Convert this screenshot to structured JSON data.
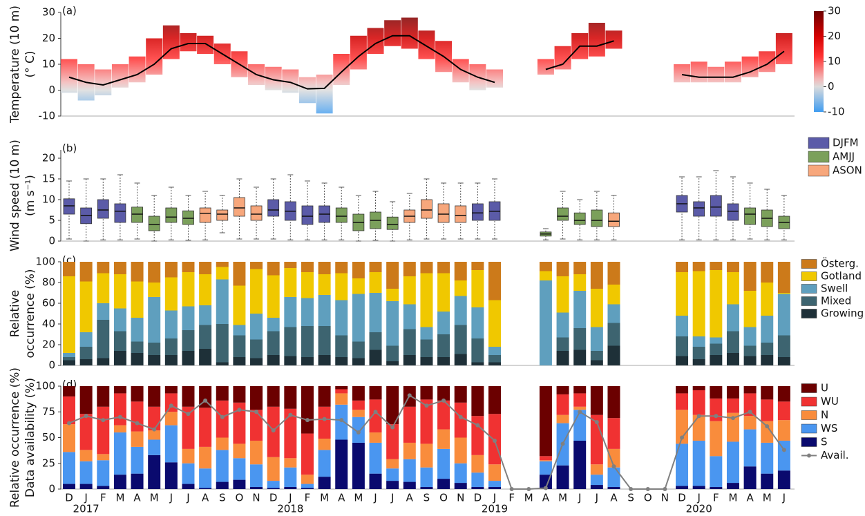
{
  "chart_data": [
    {
      "type": "line",
      "label": "(a)",
      "ylabel": [
        "Temperature (10 m)",
        "(° C)"
      ],
      "ylim": [
        -10,
        30
      ],
      "yticks": [
        -10,
        0,
        10,
        20,
        30
      ],
      "line_color": "#000000",
      "values": [
        5,
        3,
        2,
        4,
        6,
        10,
        16,
        18,
        18,
        14,
        10,
        6,
        4,
        3,
        0.5,
        0.7,
        7,
        13,
        18,
        21,
        21,
        17,
        13,
        8,
        5,
        3,
        null,
        null,
        8,
        10,
        17,
        17,
        19,
        null,
        null,
        null,
        6,
        5,
        5,
        5,
        7,
        10,
        15
      ],
      "max": [
        12,
        10,
        8,
        10,
        13,
        20,
        25,
        22,
        21,
        18,
        15,
        10,
        9,
        8,
        5,
        6,
        14,
        21,
        24,
        27,
        28,
        23,
        19,
        12,
        10,
        8,
        null,
        null,
        12,
        17,
        22,
        26,
        23,
        null,
        null,
        null,
        10,
        11,
        9,
        11,
        13,
        15,
        22
      ],
      "min": [
        -1,
        -4,
        -2,
        1,
        3,
        6,
        12,
        15,
        14,
        10,
        5,
        2,
        0,
        -1,
        -5,
        -9,
        2,
        8,
        14,
        17,
        16,
        12,
        7,
        3,
        0,
        1,
        null,
        null,
        6,
        8,
        12,
        13,
        16,
        null,
        null,
        null,
        3,
        3,
        3,
        3,
        5,
        7,
        10
      ],
      "clim": [
        -10,
        30
      ],
      "cticks": [
        30,
        20,
        10,
        0,
        -10
      ],
      "colorscale": [
        {
          "value": 30,
          "color": "#6e0000"
        },
        {
          "value": 20,
          "color": "#d40000"
        },
        {
          "value": 12,
          "color": "#ff3333"
        },
        {
          "value": 3,
          "color": "#f2b8b8"
        },
        {
          "value": 0,
          "color": "#dcdcdc"
        },
        {
          "value": -10,
          "color": "#3f9cf0"
        }
      ]
    },
    {
      "type": "box",
      "label": "(b)",
      "ylabel": [
        "Wind speed (10 m)",
        "(m s⁻¹)"
      ],
      "ylim": [
        0,
        22
      ],
      "yticks": [
        0,
        5,
        10,
        15,
        20
      ],
      "series": [
        {
          "name": "DJFM",
          "color": "#5b5ba8",
          "values": [
            [
              0.5,
              6.5,
              8.5,
              10.2,
              14.5
            ],
            [
              0,
              4.2,
              6.2,
              8,
              15
            ],
            [
              0.3,
              5.5,
              7.5,
              10,
              15
            ],
            [
              0.3,
              4.5,
              7.2,
              9,
              16
            ],
            null,
            null,
            null,
            null,
            null,
            null,
            null,
            null,
            [
              0.5,
              6,
              7.5,
              10,
              15
            ],
            [
              0.3,
              5,
              7.2,
              9.5,
              16
            ],
            [
              0.3,
              4,
              6,
              8.5,
              14.5
            ],
            [
              0.3,
              4.5,
              6.5,
              8.5,
              14
            ],
            null,
            null,
            null,
            null,
            null,
            null,
            null,
            null,
            [
              0.5,
              5,
              6.8,
              9,
              14
            ],
            [
              0.5,
              5,
              7.2,
              9.5,
              15
            ],
            null,
            null,
            null,
            null,
            null,
            null,
            null,
            null,
            null,
            null,
            [
              0.3,
              7,
              9,
              11,
              15.5
            ],
            [
              0.3,
              6,
              8,
              9.5,
              15.5
            ],
            [
              0.3,
              6,
              8.2,
              11,
              17
            ],
            [
              0.3,
              5,
              7.2,
              9,
              15.5
            ],
            null,
            null,
            null
          ]
        },
        {
          "name": "AMJJ",
          "color": "#7ba05b",
          "values": [
            null,
            null,
            null,
            null,
            [
              0.5,
              4.5,
              6.5,
              8.2,
              14
            ],
            [
              0,
              2.5,
              4,
              6,
              11
            ],
            [
              0.3,
              4.5,
              5.8,
              8,
              13
            ],
            [
              0.2,
              4,
              5.5,
              7.3,
              11
            ],
            null,
            null,
            null,
            null,
            null,
            null,
            null,
            null,
            [
              0.3,
              4.5,
              6,
              8,
              13
            ],
            [
              0,
              2.5,
              4.5,
              6.5,
              11
            ],
            [
              0.2,
              3,
              5,
              7,
              12
            ],
            [
              0,
              2.8,
              4,
              5.8,
              9.5
            ],
            null,
            null,
            null,
            null,
            null,
            null,
            null,
            null,
            [
              0.3,
              1.2,
              1.7,
              2.2,
              3
            ],
            [
              0.5,
              5,
              6,
              8,
              12
            ],
            [
              0.3,
              4,
              5,
              6.8,
              10
            ],
            [
              0.3,
              3.5,
              5,
              7.5,
              12
            ],
            null,
            null,
            null,
            null,
            null,
            null,
            null,
            null,
            [
              0.5,
              4,
              6.5,
              8,
              14
            ],
            [
              0.3,
              3.5,
              5.5,
              7.5,
              12.5
            ],
            [
              0.3,
              3,
              4.5,
              6,
              11
            ]
          ]
        },
        {
          "name": "ASON",
          "color": "#f7a77c",
          "values": [
            null,
            null,
            null,
            null,
            null,
            null,
            null,
            null,
            [
              0.3,
              4.5,
              6.7,
              8,
              12
            ],
            [
              2,
              5,
              6.5,
              7.5,
              11
            ],
            [
              0.5,
              6,
              8,
              10.5,
              15
            ],
            [
              0.5,
              5,
              6.5,
              8.5,
              13
            ],
            null,
            null,
            null,
            null,
            null,
            null,
            null,
            null,
            [
              0.3,
              4.5,
              6,
              7.5,
              11.5
            ],
            [
              0.5,
              5.5,
              7.5,
              10,
              15
            ],
            [
              0.5,
              4.5,
              6.5,
              9,
              14
            ],
            [
              0.5,
              4.5,
              6.2,
              8.5,
              14
            ],
            null,
            null,
            null,
            null,
            null,
            null,
            null,
            null,
            [
              0.3,
              3.5,
              4.8,
              6.8,
              11
            ],
            null,
            null,
            null,
            null,
            null,
            null,
            null,
            null,
            null,
            null
          ]
        }
      ]
    },
    {
      "type": "stacked-bar",
      "label": "(c)",
      "ylabel": [
        "Relative",
        "occurrence (%)"
      ],
      "ylim": [
        0,
        100
      ],
      "yticks": [
        0,
        20,
        40,
        60,
        80,
        100
      ],
      "series": [
        {
          "name": "Österg.",
          "color": "#cc7a1a",
          "values": [
            14,
            19,
            11,
            12,
            19,
            20,
            15,
            10,
            12,
            5,
            23,
            7,
            13,
            6,
            10,
            12,
            11,
            16,
            10,
            26,
            14,
            11,
            11,
            18,
            8,
            37,
            null,
            null,
            9,
            14,
            12,
            26,
            22,
            null,
            null,
            null,
            10,
            9,
            8,
            10,
            28,
            20,
            30
          ]
        },
        {
          "name": "Gotland",
          "color": "#f0c800",
          "values": [
            74,
            49,
            29,
            33,
            35,
            14,
            32,
            33,
            30,
            12,
            38,
            43,
            41,
            28,
            25,
            20,
            26,
            15,
            20,
            12,
            27,
            52,
            37,
            15,
            36,
            45,
            null,
            null,
            9,
            35,
            16,
            37,
            19,
            null,
            null,
            null,
            42,
            63,
            65,
            31,
            35,
            32,
            1
          ]
        },
        {
          "name": "Swell",
          "color": "#5f9fbe",
          "values": [
            4,
            14,
            16,
            22,
            23,
            44,
            27,
            23,
            19,
            43,
            10,
            25,
            13,
            29,
            27,
            30,
            34,
            46,
            38,
            43,
            24,
            12,
            22,
            28,
            30,
            8,
            null,
            null,
            82,
            24,
            36,
            23,
            18,
            null,
            null,
            null,
            20,
            10,
            6,
            26,
            18,
            26,
            40
          ]
        },
        {
          "name": "Mixed",
          "color": "#3d6470",
          "values": [
            3,
            12,
            37,
            19,
            11,
            12,
            16,
            20,
            23,
            37,
            21,
            18,
            23,
            28,
            30,
            28,
            21,
            16,
            17,
            15,
            25,
            17,
            22,
            28,
            23,
            7,
            null,
            null,
            0,
            13,
            21,
            9,
            22,
            null,
            null,
            null,
            19,
            12,
            11,
            21,
            10,
            12,
            21
          ]
        },
        {
          "name": "Growing",
          "color": "#1e3038",
          "values": [
            5,
            6,
            7,
            14,
            12,
            10,
            10,
            14,
            16,
            3,
            8,
            7,
            10,
            9,
            8,
            10,
            8,
            7,
            15,
            4,
            10,
            8,
            8,
            11,
            3,
            3,
            null,
            null,
            0,
            14,
            15,
            5,
            19,
            null,
            null,
            null,
            9,
            6,
            10,
            12,
            9,
            10,
            8
          ]
        }
      ]
    },
    {
      "type": "stacked-bar",
      "label": "(d)",
      "ylabel": [
        "Relative occurrence (%)",
        "Data availability (%)"
      ],
      "ylim": [
        0,
        100
      ],
      "yticks": [
        0,
        25,
        50,
        75,
        100
      ],
      "categories": [
        "D",
        "J",
        "F",
        "M",
        "A",
        "M",
        "J",
        "J",
        "A",
        "S",
        "O",
        "N",
        "D",
        "J",
        "F",
        "M",
        "A",
        "M",
        "J",
        "J",
        "A",
        "S",
        "O",
        "N",
        "D",
        "J",
        "F",
        "M",
        "A",
        "M",
        "J",
        "J",
        "A",
        "S",
        "O",
        "N",
        "D",
        "J",
        "F",
        "M",
        "A",
        "M",
        "J"
      ],
      "year_labels": [
        null,
        "2017",
        null,
        null,
        null,
        null,
        null,
        null,
        null,
        null,
        null,
        null,
        null,
        "2018",
        null,
        null,
        null,
        null,
        null,
        null,
        null,
        null,
        null,
        null,
        null,
        "2019",
        null,
        null,
        null,
        null,
        null,
        null,
        null,
        null,
        null,
        null,
        null,
        "2020",
        null,
        null,
        null,
        null,
        null
      ],
      "series": [
        {
          "name": "U",
          "color": "#6b0000",
          "values": [
            10,
            27,
            20,
            7,
            15,
            20,
            7,
            20,
            21,
            14,
            16,
            23,
            20,
            22,
            46,
            20,
            3,
            14,
            13,
            37,
            20,
            13,
            14,
            16,
            29,
            27,
            null,
            null,
            68,
            8,
            7,
            28,
            31,
            null,
            null,
            null,
            7,
            4,
            12,
            12,
            7,
            13,
            15
          ]
        },
        {
          "name": "WU",
          "color": "#f03232",
          "values": [
            27,
            35,
            46,
            31,
            29,
            23,
            18,
            41,
            38,
            36,
            40,
            30,
            49,
            48,
            40,
            31,
            4,
            9,
            32,
            34,
            35,
            43,
            28,
            34,
            38,
            49,
            null,
            null,
            4,
            20,
            13,
            48,
            30,
            null,
            null,
            null,
            16,
            24,
            22,
            14,
            22,
            21,
            18
          ]
        },
        {
          "name": "N",
          "color": "#f98c3c",
          "values": [
            27,
            11,
            6,
            7,
            15,
            9,
            13,
            14,
            21,
            12,
            14,
            23,
            23,
            9,
            9,
            11,
            11,
            7,
            10,
            9,
            16,
            23,
            19,
            25,
            17,
            16,
            null,
            null,
            1,
            8,
            3,
            10,
            18,
            null,
            null,
            null,
            33,
            25,
            34,
            28,
            13,
            21,
            20
          ]
        },
        {
          "name": "WS",
          "color": "#4a96f0",
          "values": [
            31,
            22,
            25,
            41,
            26,
            15,
            36,
            20,
            19,
            31,
            21,
            22,
            7,
            19,
            4,
            26,
            34,
            25,
            30,
            12,
            22,
            19,
            29,
            19,
            14,
            6,
            null,
            null,
            13,
            41,
            30,
            10,
            19,
            null,
            null,
            null,
            41,
            44,
            30,
            40,
            36,
            30,
            29
          ]
        },
        {
          "name": "S",
          "color": "#0a0a6e",
          "values": [
            5,
            5,
            3,
            14,
            15,
            33,
            26,
            5,
            1,
            7,
            9,
            2,
            1,
            2,
            1,
            12,
            48,
            45,
            15,
            8,
            7,
            2,
            10,
            6,
            2,
            2,
            null,
            null,
            14,
            23,
            47,
            4,
            2,
            null,
            null,
            null,
            3,
            3,
            2,
            6,
            22,
            15,
            18
          ]
        }
      ],
      "line_series": {
        "name": "Avail.",
        "color": "#808080",
        "values": [
          64,
          71,
          67,
          70,
          64,
          58,
          81,
          73,
          86,
          70,
          77,
          75,
          57,
          72,
          67,
          68,
          67,
          55,
          75,
          60,
          91,
          81,
          86,
          70,
          62,
          47,
          0,
          0,
          1,
          44,
          75,
          65,
          22,
          0,
          0,
          0,
          50,
          71,
          71,
          69,
          75,
          61,
          38
        ]
      }
    }
  ]
}
